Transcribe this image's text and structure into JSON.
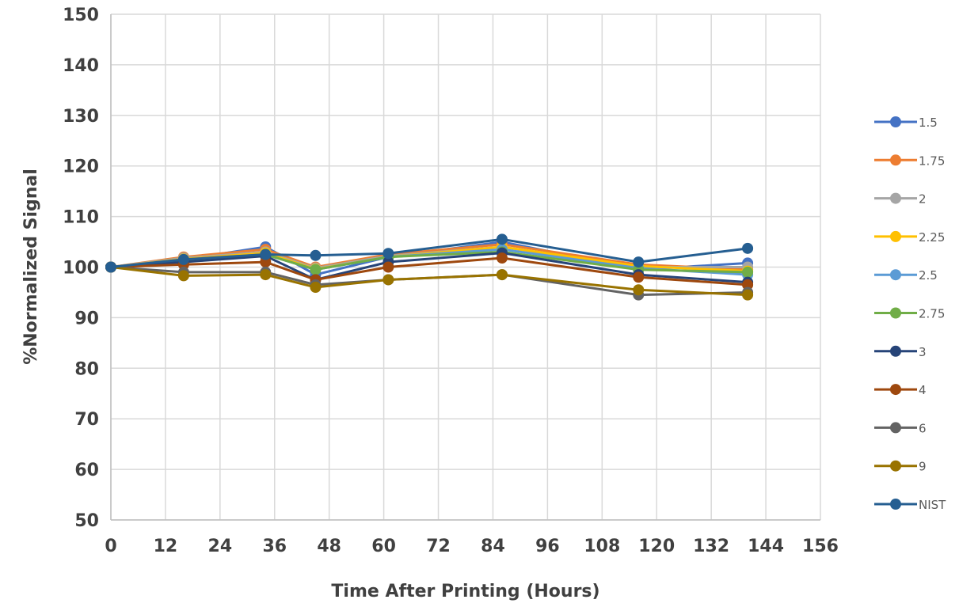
{
  "chart_data": {
    "type": "line",
    "title": "",
    "xlabel": "Time After Printing (Hours)",
    "ylabel": "%Normalized Signal",
    "xlim": [
      0,
      156
    ],
    "ylim": [
      50,
      150
    ],
    "xticks": [
      0,
      12,
      24,
      36,
      48,
      60,
      72,
      84,
      96,
      108,
      120,
      132,
      144,
      156
    ],
    "yticks": [
      50,
      60,
      70,
      80,
      90,
      100,
      110,
      120,
      130,
      140,
      150
    ],
    "grid": true,
    "legend_position": "right",
    "x": [
      0,
      16,
      34,
      45,
      61,
      86,
      116,
      140
    ],
    "series": [
      {
        "name": "1.5",
        "color": "#4472C4",
        "values": [
          100,
          101.5,
          104,
          98.5,
          102,
          105,
          99.5,
          100.8
        ]
      },
      {
        "name": "1.75",
        "color": "#ED7D31",
        "values": [
          100,
          102,
          103.5,
          100,
          102.5,
          104.5,
          100.5,
          99.5
        ]
      },
      {
        "name": "2",
        "color": "#A5A5A5",
        "values": [
          100,
          101.8,
          103,
          99.8,
          102.2,
          104,
          100,
          100
        ]
      },
      {
        "name": "2.25",
        "color": "#FFC000",
        "values": [
          100,
          101.6,
          102.8,
          99.6,
          102,
          104,
          100.2,
          99.2
        ]
      },
      {
        "name": "2.5",
        "color": "#5B9BD5",
        "values": [
          100,
          101.5,
          102.5,
          99.5,
          102,
          103.5,
          99.8,
          98.5
        ]
      },
      {
        "name": "2.75",
        "color": "#70AD47",
        "values": [
          100,
          101.3,
          102.5,
          99.5,
          102,
          103,
          99.5,
          99
        ]
      },
      {
        "name": "3",
        "color": "#264478",
        "values": [
          100,
          101,
          102.2,
          97.5,
          101,
          102.8,
          98.5,
          97
        ]
      },
      {
        "name": "4",
        "color": "#9E480E",
        "values": [
          100,
          100.5,
          101,
          97.5,
          100,
          101.8,
          98,
          96.5
        ]
      },
      {
        "name": "6",
        "color": "#636363",
        "values": [
          100,
          99,
          99,
          96.5,
          97.5,
          98.5,
          94.5,
          95
        ]
      },
      {
        "name": "9",
        "color": "#997300",
        "values": [
          100,
          98.3,
          98.5,
          96,
          97.5,
          98.5,
          95.5,
          94.5
        ]
      },
      {
        "name": "NIST",
        "color": "#255E91",
        "values": [
          100,
          101.5,
          102.5,
          102.3,
          102.7,
          105.5,
          101,
          103.7
        ]
      }
    ]
  }
}
